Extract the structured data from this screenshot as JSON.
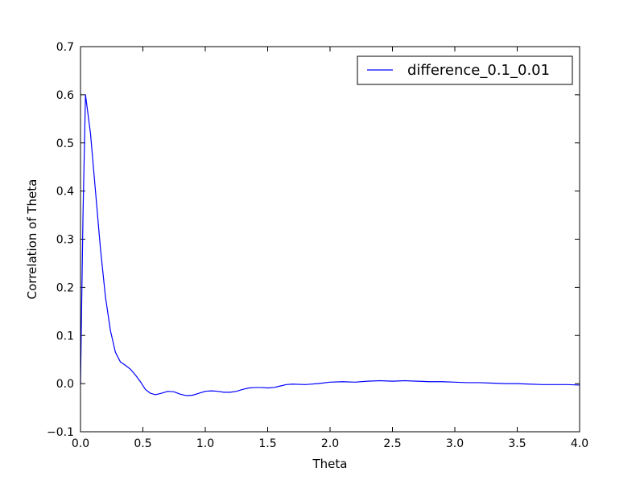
{
  "chart_data": {
    "type": "line",
    "xlabel": "Theta",
    "ylabel": "Correlation of Theta",
    "xlim": [
      0.0,
      4.0
    ],
    "ylim": [
      -0.1,
      0.7
    ],
    "xticks": [
      "0.0",
      "0.5",
      "1.0",
      "1.5",
      "2.0",
      "2.5",
      "3.0",
      "3.5",
      "4.0"
    ],
    "yticks": [
      "−0.1",
      "0.0",
      "0.1",
      "0.2",
      "0.3",
      "0.4",
      "0.5",
      "0.6",
      "0.7"
    ],
    "grid": false,
    "legend_position": "top-right",
    "series": [
      {
        "name": "difference_0.1_0.01",
        "color": "#0000ff",
        "x": [
          0.0,
          0.02,
          0.04,
          0.08,
          0.12,
          0.16,
          0.2,
          0.24,
          0.28,
          0.32,
          0.36,
          0.4,
          0.44,
          0.48,
          0.52,
          0.56,
          0.6,
          0.65,
          0.7,
          0.75,
          0.8,
          0.85,
          0.9,
          0.95,
          1.0,
          1.05,
          1.1,
          1.15,
          1.2,
          1.25,
          1.3,
          1.35,
          1.4,
          1.45,
          1.5,
          1.55,
          1.6,
          1.65,
          1.7,
          1.8,
          1.9,
          2.0,
          2.1,
          2.2,
          2.3,
          2.4,
          2.5,
          2.6,
          2.7,
          2.8,
          2.9,
          3.0,
          3.1,
          3.2,
          3.3,
          3.4,
          3.5,
          3.6,
          3.7,
          3.8,
          3.9,
          4.0
        ],
        "y": [
          0.0,
          0.35,
          0.6,
          0.52,
          0.4,
          0.28,
          0.18,
          0.11,
          0.065,
          0.045,
          0.038,
          0.03,
          0.018,
          0.004,
          -0.012,
          -0.02,
          -0.023,
          -0.02,
          -0.016,
          -0.017,
          -0.022,
          -0.025,
          -0.024,
          -0.02,
          -0.016,
          -0.015,
          -0.016,
          -0.018,
          -0.018,
          -0.016,
          -0.012,
          -0.009,
          -0.008,
          -0.008,
          -0.009,
          -0.008,
          -0.005,
          -0.002,
          -0.001,
          -0.002,
          0.0,
          0.003,
          0.004,
          0.003,
          0.005,
          0.006,
          0.005,
          0.006,
          0.005,
          0.004,
          0.004,
          0.003,
          0.002,
          0.002,
          0.001,
          0.0,
          0.0,
          -0.001,
          -0.002,
          -0.002,
          -0.002,
          -0.003
        ]
      }
    ]
  }
}
